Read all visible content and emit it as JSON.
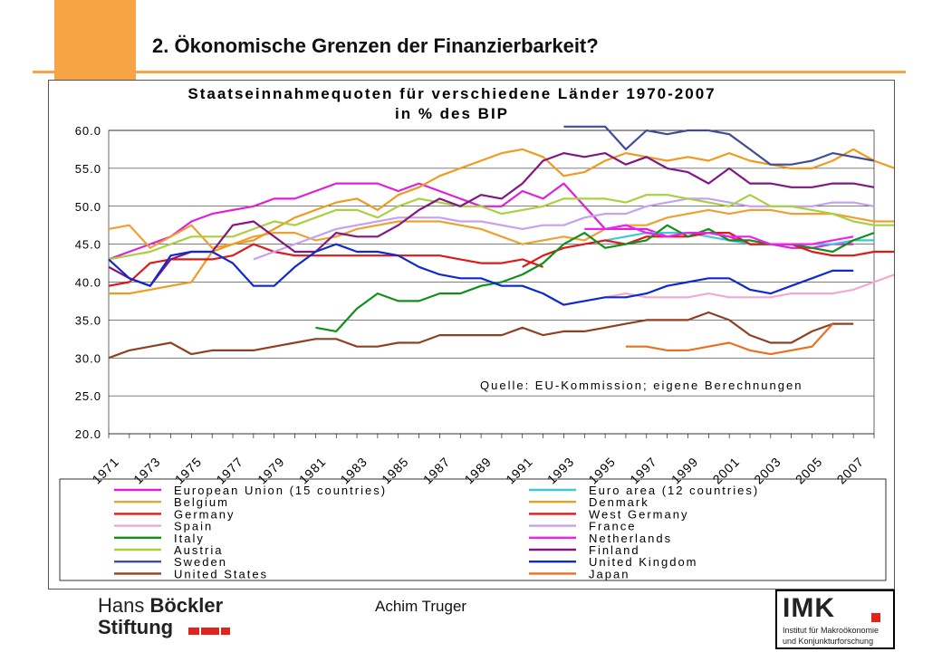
{
  "slide": {
    "title": "2. Ökonomische Grenzen der Finanzierbarkeit?",
    "author": "Achim Truger"
  },
  "logos": {
    "hans_boeckler_line1_light": "Hans ",
    "hans_boeckler_line1_bold": "Böckler",
    "hans_boeckler_line2": "Stiftung",
    "imk_letters": "IMK",
    "imk_sub1": "Institut für Makroökonomie",
    "imk_sub2": "und Konjunkturforschung",
    "brand_red": "#e2231a",
    "accent_orange": "#f7a446"
  },
  "chart_data": {
    "type": "line",
    "title_line1": "Staatseinnahmequoten für verschiedene Länder 1970-2007",
    "title_line2": "in % des BIP",
    "source_note": "Quelle: EU-Kommission; eigene Berechnungen",
    "ylim": [
      20,
      60
    ],
    "yticks": [
      "60.0",
      "55.0",
      "50.0",
      "45.0",
      "40.0",
      "35.0",
      "30.0",
      "25.0",
      "20.0"
    ],
    "xlim": [
      1971,
      2008
    ],
    "xtick_labels": [
      "1971",
      "1973",
      "1975",
      "1977",
      "1979",
      "1981",
      "1983",
      "1985",
      "1987",
      "1989",
      "1991",
      "1993",
      "1995",
      "1997",
      "1999",
      "2001",
      "2003",
      "2005",
      "2007"
    ],
    "grid": "horizontal",
    "legend_position": "bottom",
    "series": [
      {
        "name": "European Union (15 countries)",
        "color": "#e020d8",
        "x0": 1971,
        "values": [
          43,
          44,
          45,
          46,
          48,
          49,
          49.5,
          50,
          51,
          51,
          52,
          53,
          53,
          53,
          52,
          53,
          52,
          51,
          50,
          50,
          52,
          51,
          53,
          50,
          47,
          47,
          47,
          46,
          46.5,
          46.5,
          46,
          45,
          45,
          44.5,
          44.5,
          45,
          45
        ]
      },
      {
        "name": "Euro area (12 countries)",
        "color": "#3ec8d8",
        "x0": 1995,
        "values": [
          45.5,
          46,
          46.5,
          46.5,
          46.5,
          46,
          45.5,
          45,
          45,
          45,
          45,
          45,
          45.5,
          45.5
        ]
      },
      {
        "name": "Belgium",
        "color": "#f0a030",
        "x0": 1971,
        "values": [
          47,
          47.5,
          44.5,
          46,
          47.5,
          44.5,
          45,
          46,
          46.5,
          46.5,
          45.5,
          46,
          47,
          47.5,
          48,
          48,
          48,
          47.5,
          47,
          46,
          45,
          45.5,
          46,
          45.5,
          47,
          47.5,
          47.5,
          48.5,
          49,
          49.5,
          49,
          49.5,
          49.5,
          49,
          49,
          49,
          48.5,
          48,
          48
        ]
      },
      {
        "name": "Denmark",
        "color": "#f09a20",
        "x0": 1971,
        "values": [
          38.5,
          38.5,
          39,
          39.5,
          40,
          44,
          45,
          45.5,
          47,
          48.5,
          49.5,
          50.5,
          51,
          49.5,
          51.5,
          52.5,
          54,
          55,
          56,
          57,
          57.5,
          56.5,
          54,
          54.5,
          56,
          57,
          56.5,
          56,
          56.5,
          56,
          57,
          56,
          55.5,
          55,
          55,
          56,
          57.5,
          56,
          55
        ]
      },
      {
        "name": "Germany",
        "color": "#e01818",
        "x0": 1991,
        "values": [
          42,
          43.5,
          44.5,
          45,
          45.5,
          45,
          46,
          46,
          46,
          46.5,
          46.5,
          45,
          45,
          45,
          44,
          43.5,
          43.5,
          44,
          44
        ]
      },
      {
        "name": "West Germany",
        "color": "#e01818",
        "x0": 1971,
        "values": [
          39.5,
          40,
          42.5,
          43,
          43,
          43,
          43.5,
          45,
          44,
          43.5,
          43.5,
          43.5,
          43.5,
          43.5,
          43.5,
          43.5,
          43.5,
          43,
          42.5,
          42.5,
          43,
          42
        ]
      },
      {
        "name": "Spain",
        "color": "#f4a8d0",
        "x0": 1995,
        "values": [
          38,
          38.5,
          38,
          38,
          38,
          38.5,
          38,
          38,
          38,
          38.5,
          38.5,
          38.5,
          39,
          40,
          41
        ]
      },
      {
        "name": "France",
        "color": "#c8a0f0",
        "x0": 1978,
        "values": [
          43,
          44,
          45,
          46,
          47,
          47.5,
          48,
          48.5,
          48.5,
          48.5,
          48,
          48,
          47.5,
          47,
          47.5,
          47.5,
          48.5,
          49,
          49,
          50,
          50.5,
          51,
          51,
          50.5,
          50,
          50,
          50,
          50,
          50.5,
          50.5,
          50
        ]
      },
      {
        "name": "Italy",
        "color": "#109018",
        "x0": 1981,
        "values": [
          34,
          33.5,
          36.5,
          38.5,
          37.5,
          37.5,
          38.5,
          38.5,
          39.5,
          40,
          41,
          42.5,
          45,
          46.5,
          44.5,
          45,
          45.5,
          47.5,
          46,
          47,
          45.5,
          45.5,
          45,
          45,
          44.5,
          44,
          45.5,
          46.5
        ]
      },
      {
        "name": "Netherlands",
        "color": "#f020f0",
        "x0": 1994,
        "values": [
          47,
          47,
          47.5,
          46.5,
          46,
          46.5,
          46.5,
          46,
          46,
          45,
          45,
          45,
          45.5,
          46
        ]
      },
      {
        "name": "Austria",
        "color": "#a8d040",
        "x0": 1971,
        "values": [
          43,
          43.5,
          44,
          45,
          46,
          46,
          46,
          47,
          48,
          47.5,
          48.5,
          49.5,
          49.5,
          48.5,
          50,
          51,
          50.5,
          50,
          50,
          49,
          49.5,
          50,
          51,
          51,
          51,
          50.5,
          51.5,
          51.5,
          51,
          50.5,
          50,
          51.5,
          50,
          50,
          49.5,
          49,
          48,
          47.5,
          47.5
        ]
      },
      {
        "name": "Finland",
        "color": "#801880",
        "x0": 1971,
        "values": [
          42,
          40.5,
          39.5,
          43,
          44,
          44,
          47.5,
          48,
          46,
          44,
          44,
          46.5,
          46,
          46,
          47.5,
          49.5,
          51,
          50,
          51.5,
          51,
          53,
          56,
          57,
          56.5,
          57,
          55.5,
          56.5,
          55,
          54.5,
          53,
          55,
          53,
          53,
          52.5,
          52.5,
          53,
          53,
          52.5
        ]
      },
      {
        "name": "Sweden",
        "color": "#404c98",
        "x0": 1993,
        "values": [
          60.5,
          60.5,
          60.5,
          57.5,
          60,
          59.5,
          60,
          60,
          59.5,
          57.5,
          55.5,
          55.5,
          56,
          57,
          56.5,
          56
        ]
      },
      {
        "name": "United Kingdom",
        "color": "#1028d0",
        "x0": 1971,
        "values": [
          43,
          40.5,
          39.5,
          43.5,
          44,
          44,
          42.5,
          39.5,
          39.5,
          42,
          44,
          45,
          44,
          44,
          43.5,
          42,
          41,
          40.5,
          40.5,
          39.5,
          39.5,
          38.5,
          37,
          37.5,
          38,
          38,
          38.5,
          39.5,
          40,
          40.5,
          40.5,
          39,
          38.5,
          39.5,
          40.5,
          41.5,
          41.5
        ]
      },
      {
        "name": "United States",
        "color": "#904020",
        "x0": 1971,
        "values": [
          30,
          31,
          31.5,
          32,
          30.5,
          31,
          31,
          31,
          31.5,
          32,
          32.5,
          32.5,
          31.5,
          31.5,
          32,
          32,
          33,
          33,
          33,
          33,
          34,
          33,
          33.5,
          33.5,
          34,
          34.5,
          35,
          35,
          35,
          36,
          35,
          33,
          32,
          32,
          33.5,
          34.5,
          34.5
        ]
      },
      {
        "name": "Japan",
        "color": "#e87020",
        "x0": 1996,
        "values": [
          31.5,
          31.5,
          31,
          31,
          31.5,
          32,
          31,
          30.5,
          31,
          31.5,
          34.5
        ]
      }
    ]
  }
}
